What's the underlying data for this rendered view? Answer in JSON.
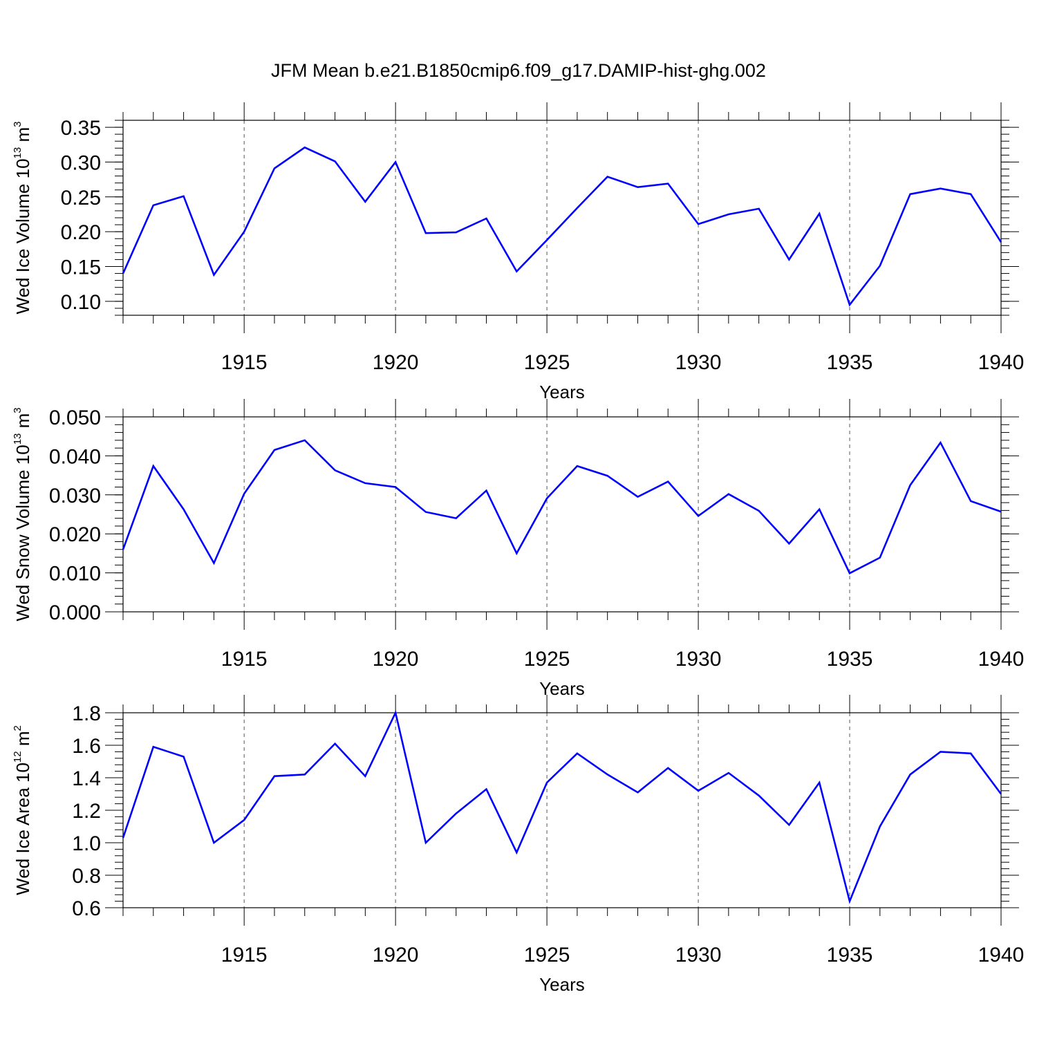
{
  "title": "JFM Mean b.e21.B1850cmip6.f09_g17.DAMIP-hist-ghg.002",
  "series_color": "#0000ff",
  "chart_data": [
    {
      "type": "line",
      "xlabel": "Years",
      "ylabel": {
        "main": "Wed Ice Volume 10",
        "exp": "13",
        "unit": " m",
        "unit_exp": "3"
      },
      "xlim": [
        1911,
        1940
      ],
      "ylim": [
        0.08,
        0.36
      ],
      "xticks": [
        1915,
        1920,
        1925,
        1930,
        1935,
        1940
      ],
      "yticks": [
        0.1,
        0.15,
        0.2,
        0.25,
        0.3,
        0.35
      ],
      "ytick_labels": [
        "0.10",
        "0.15",
        "0.20",
        "0.25",
        "0.30",
        "0.35"
      ],
      "y_minor_step": 0.01,
      "x": [
        1911,
        1912,
        1913,
        1914,
        1915,
        1916,
        1917,
        1918,
        1919,
        1920,
        1921,
        1922,
        1923,
        1924,
        1925,
        1926,
        1927,
        1928,
        1929,
        1930,
        1931,
        1932,
        1933,
        1934,
        1935,
        1936,
        1937,
        1938,
        1939,
        1940
      ],
      "values": [
        0.14,
        0.238,
        0.251,
        0.138,
        0.2,
        0.291,
        0.321,
        0.301,
        0.243,
        0.3,
        0.198,
        0.199,
        0.219,
        0.143,
        0.188,
        0.234,
        0.279,
        0.264,
        0.269,
        0.211,
        0.225,
        0.233,
        0.16,
        0.226,
        0.095,
        0.151,
        0.254,
        0.262,
        0.254,
        0.185
      ]
    },
    {
      "type": "line",
      "xlabel": "Years",
      "ylabel": {
        "main": "Wed Snow Volume 10",
        "exp": "13",
        "unit": " m",
        "unit_exp": "3"
      },
      "xlim": [
        1911,
        1940
      ],
      "ylim": [
        0.0,
        0.05
      ],
      "xticks": [
        1915,
        1920,
        1925,
        1930,
        1935,
        1940
      ],
      "yticks": [
        0.0,
        0.01,
        0.02,
        0.03,
        0.04,
        0.05
      ],
      "ytick_labels": [
        "0.000",
        "0.010",
        "0.020",
        "0.030",
        "0.040",
        "0.050"
      ],
      "y_minor_step": 0.002,
      "x": [
        1911,
        1912,
        1913,
        1914,
        1915,
        1916,
        1917,
        1918,
        1919,
        1920,
        1921,
        1922,
        1923,
        1924,
        1925,
        1926,
        1927,
        1928,
        1929,
        1930,
        1931,
        1932,
        1933,
        1934,
        1935,
        1936,
        1937,
        1938,
        1939,
        1940
      ],
      "values": [
        0.016,
        0.0374,
        0.0263,
        0.0125,
        0.0303,
        0.0415,
        0.044,
        0.0363,
        0.033,
        0.032,
        0.0256,
        0.024,
        0.0311,
        0.015,
        0.0291,
        0.0374,
        0.0349,
        0.0295,
        0.0334,
        0.0246,
        0.0302,
        0.0259,
        0.0175,
        0.0263,
        0.0099,
        0.0139,
        0.0325,
        0.0434,
        0.0284,
        0.0257
      ]
    },
    {
      "type": "line",
      "xlabel": "Years",
      "ylabel": {
        "main": "Wed Ice Area 10",
        "exp": "12",
        "unit": " m",
        "unit_exp": "2"
      },
      "xlim": [
        1911,
        1940
      ],
      "ylim": [
        0.6,
        1.8
      ],
      "xticks": [
        1915,
        1920,
        1925,
        1930,
        1935,
        1940
      ],
      "yticks": [
        0.6,
        0.8,
        1.0,
        1.2,
        1.4,
        1.6,
        1.8
      ],
      "ytick_labels": [
        "0.6",
        "0.8",
        "1.0",
        "1.2",
        "1.4",
        "1.6",
        "1.8"
      ],
      "y_minor_step": 0.04,
      "x": [
        1911,
        1912,
        1913,
        1914,
        1915,
        1916,
        1917,
        1918,
        1919,
        1920,
        1921,
        1922,
        1923,
        1924,
        1925,
        1926,
        1927,
        1928,
        1929,
        1930,
        1931,
        1932,
        1933,
        1934,
        1935,
        1936,
        1937,
        1938,
        1939,
        1940
      ],
      "values": [
        1.03,
        1.59,
        1.53,
        1.0,
        1.14,
        1.41,
        1.42,
        1.61,
        1.41,
        1.8,
        1.0,
        1.18,
        1.33,
        0.94,
        1.37,
        1.55,
        1.42,
        1.31,
        1.46,
        1.32,
        1.43,
        1.29,
        1.11,
        1.37,
        0.64,
        1.1,
        1.42,
        1.56,
        1.55,
        1.3
      ]
    }
  ]
}
